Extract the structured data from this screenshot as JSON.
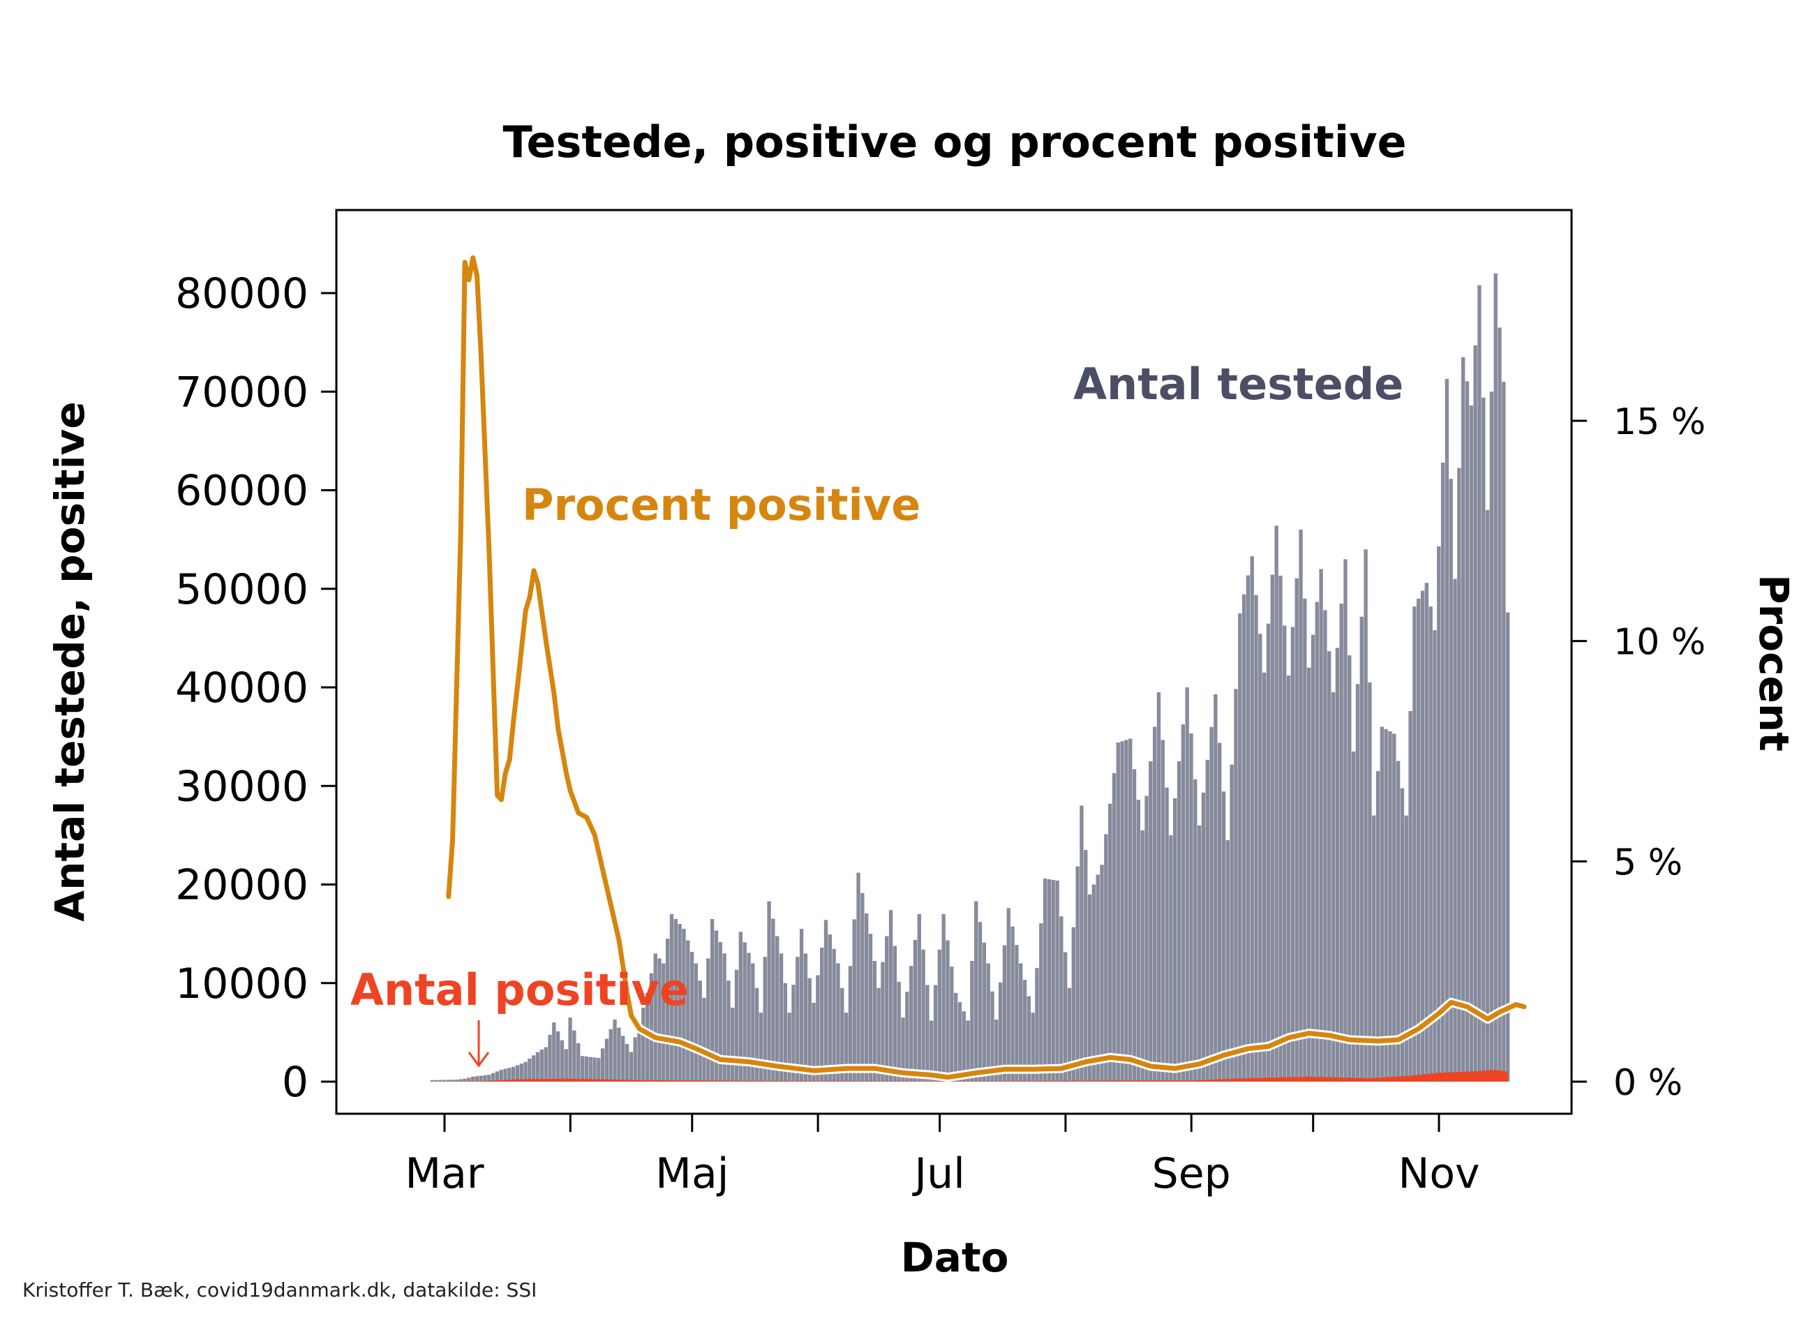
{
  "chart_data": {
    "type": "bar",
    "title": "Testede, positive og procent positive",
    "xlabel": "Dato",
    "ylabel": "Antal testede, positive",
    "ylabel_right": "Procent",
    "ylim": [
      0,
      87000
    ],
    "ylim_right": [
      0,
      20
    ],
    "x_start": "2020-02-27",
    "x_end": "2020-11-18",
    "x_ticks": [
      {
        "date": "2020-03-01",
        "label": "Mar"
      },
      {
        "date": "2020-04-01",
        "label": ""
      },
      {
        "date": "2020-05-01",
        "label": "Maj"
      },
      {
        "date": "2020-06-01",
        "label": ""
      },
      {
        "date": "2020-07-01",
        "label": "Jul"
      },
      {
        "date": "2020-08-01",
        "label": ""
      },
      {
        "date": "2020-09-01",
        "label": "Sep"
      },
      {
        "date": "2020-10-01",
        "label": ""
      },
      {
        "date": "2020-11-01",
        "label": "Nov"
      }
    ],
    "y_ticks": [
      0,
      10000,
      20000,
      30000,
      40000,
      50000,
      60000,
      70000,
      80000
    ],
    "y_tick_labels": [
      "0",
      "10000",
      "20000",
      "30000",
      "40000",
      "50000",
      "60000",
      "70000",
      "80000"
    ],
    "y_right_ticks": [
      0,
      5,
      10,
      15
    ],
    "y_right_tick_labels": [
      "0 %",
      "5 %",
      "10 %",
      "15 %"
    ],
    "series": [
      {
        "name": "Antal testede",
        "color": "#868b9c",
        "points": [
          [
            "2020-02-27",
            150
          ],
          [
            "2020-03-04",
            200
          ],
          [
            "2020-03-06",
            300
          ],
          [
            "2020-03-08",
            500
          ],
          [
            "2020-03-12",
            700
          ],
          [
            "2020-03-15",
            1200
          ],
          [
            "2020-03-18",
            1500
          ],
          [
            "2020-03-21",
            2000
          ],
          [
            "2020-03-24",
            3000
          ],
          [
            "2020-03-26",
            3500
          ],
          [
            "2020-03-28",
            6000
          ],
          [
            "2020-03-31",
            3300
          ],
          [
            "2020-04-01",
            6500
          ],
          [
            "2020-04-04",
            2600
          ],
          [
            "2020-04-08",
            2400
          ],
          [
            "2020-04-12",
            6300
          ],
          [
            "2020-04-16",
            3000
          ],
          [
            "2020-04-20",
            9000
          ],
          [
            "2020-04-22",
            13000
          ],
          [
            "2020-04-24",
            12000
          ],
          [
            "2020-04-26",
            17000
          ],
          [
            "2020-04-29",
            15500
          ],
          [
            "2020-05-02",
            12000
          ],
          [
            "2020-05-04",
            8500
          ],
          [
            "2020-05-06",
            16500
          ],
          [
            "2020-05-09",
            13000
          ],
          [
            "2020-05-11",
            7500
          ],
          [
            "2020-05-13",
            15200
          ],
          [
            "2020-05-16",
            12000
          ],
          [
            "2020-05-18",
            7000
          ],
          [
            "2020-05-20",
            18300
          ],
          [
            "2020-05-23",
            13000
          ],
          [
            "2020-05-25",
            7000
          ],
          [
            "2020-05-28",
            15500
          ],
          [
            "2020-05-31",
            8000
          ],
          [
            "2020-06-03",
            16400
          ],
          [
            "2020-06-06",
            12000
          ],
          [
            "2020-06-08",
            7000
          ],
          [
            "2020-06-11",
            21200
          ],
          [
            "2020-06-14",
            15000
          ],
          [
            "2020-06-16",
            9500
          ],
          [
            "2020-06-19",
            17400
          ],
          [
            "2020-06-22",
            6500
          ],
          [
            "2020-06-26",
            17000
          ],
          [
            "2020-06-29",
            6200
          ],
          [
            "2020-07-02",
            17000
          ],
          [
            "2020-07-05",
            9000
          ],
          [
            "2020-07-08",
            6200
          ],
          [
            "2020-07-10",
            18300
          ],
          [
            "2020-07-13",
            12000
          ],
          [
            "2020-07-15",
            6300
          ],
          [
            "2020-07-18",
            17600
          ],
          [
            "2020-07-21",
            12000
          ],
          [
            "2020-07-24",
            7000
          ],
          [
            "2020-07-27",
            20600
          ],
          [
            "2020-07-30",
            20400
          ],
          [
            "2020-08-02",
            9500
          ],
          [
            "2020-08-05",
            28000
          ],
          [
            "2020-08-07",
            19000
          ],
          [
            "2020-08-10",
            22000
          ],
          [
            "2020-08-14",
            34400
          ],
          [
            "2020-08-17",
            34800
          ],
          [
            "2020-08-20",
            25500
          ],
          [
            "2020-08-24",
            39500
          ],
          [
            "2020-08-27",
            25000
          ],
          [
            "2020-08-31",
            40000
          ],
          [
            "2020-09-03",
            26000
          ],
          [
            "2020-09-07",
            39300
          ],
          [
            "2020-09-10",
            24500
          ],
          [
            "2020-09-13",
            47500
          ],
          [
            "2020-09-16",
            53300
          ],
          [
            "2020-09-19",
            41500
          ],
          [
            "2020-09-22",
            56400
          ],
          [
            "2020-09-25",
            41200
          ],
          [
            "2020-09-28",
            56000
          ],
          [
            "2020-09-30",
            42000
          ],
          [
            "2020-10-03",
            52000
          ],
          [
            "2020-10-06",
            39500
          ],
          [
            "2020-10-09",
            53000
          ],
          [
            "2020-10-11",
            33500
          ],
          [
            "2020-10-14",
            54000
          ],
          [
            "2020-10-16",
            27000
          ],
          [
            "2020-10-18",
            36000
          ],
          [
            "2020-10-21",
            35300
          ],
          [
            "2020-10-24",
            27000
          ],
          [
            "2020-10-26",
            48200
          ],
          [
            "2020-10-29",
            50600
          ],
          [
            "2020-10-31",
            45800
          ],
          [
            "2020-11-03",
            71300
          ],
          [
            "2020-11-05",
            51000
          ],
          [
            "2020-11-07",
            73500
          ],
          [
            "2020-11-09",
            68600
          ],
          [
            "2020-11-11",
            80800
          ],
          [
            "2020-11-13",
            58000
          ],
          [
            "2020-11-15",
            82000
          ],
          [
            "2020-11-17",
            71000
          ],
          [
            "2020-11-18",
            47600
          ]
        ]
      },
      {
        "name": "Antal positive",
        "color": "#ee4424",
        "points": [
          [
            "2020-02-27",
            0
          ],
          [
            "2020-03-10",
            60
          ],
          [
            "2020-03-20",
            250
          ],
          [
            "2020-03-31",
            300
          ],
          [
            "2020-04-20",
            150
          ],
          [
            "2020-05-15",
            80
          ],
          [
            "2020-06-15",
            40
          ],
          [
            "2020-07-15",
            40
          ],
          [
            "2020-08-10",
            100
          ],
          [
            "2020-09-01",
            120
          ],
          [
            "2020-09-15",
            350
          ],
          [
            "2020-09-30",
            500
          ],
          [
            "2020-10-15",
            350
          ],
          [
            "2020-10-25",
            600
          ],
          [
            "2020-11-01",
            900
          ],
          [
            "2020-11-10",
            1050
          ],
          [
            "2020-11-15",
            1200
          ],
          [
            "2020-11-18",
            1000
          ]
        ]
      },
      {
        "name": "Procent positive",
        "color": "#d6860e",
        "points": [
          [
            "2020-03-02",
            4.2
          ],
          [
            "2020-03-03",
            5.5
          ],
          [
            "2020-03-05",
            12.5
          ],
          [
            "2020-03-06",
            18.6
          ],
          [
            "2020-03-07",
            18.2
          ],
          [
            "2020-03-08",
            18.7
          ],
          [
            "2020-03-09",
            18.3
          ],
          [
            "2020-03-10",
            16.5
          ],
          [
            "2020-03-12",
            12.0
          ],
          [
            "2020-03-14",
            6.5
          ],
          [
            "2020-03-15",
            6.4
          ],
          [
            "2020-03-16",
            7.0
          ],
          [
            "2020-03-17",
            7.3
          ],
          [
            "2020-03-18",
            8.2
          ],
          [
            "2020-03-19",
            9.0
          ],
          [
            "2020-03-21",
            10.7
          ],
          [
            "2020-03-22",
            11.0
          ],
          [
            "2020-03-23",
            11.6
          ],
          [
            "2020-03-24",
            11.3
          ],
          [
            "2020-03-26",
            10.0
          ],
          [
            "2020-03-28",
            8.8
          ],
          [
            "2020-03-29",
            8.0
          ],
          [
            "2020-03-31",
            7.0
          ],
          [
            "2020-04-01",
            6.6
          ],
          [
            "2020-04-03",
            6.1
          ],
          [
            "2020-04-05",
            6.0
          ],
          [
            "2020-04-07",
            5.6
          ],
          [
            "2020-04-09",
            4.8
          ],
          [
            "2020-04-11",
            4.0
          ],
          [
            "2020-04-13",
            3.2
          ],
          [
            "2020-04-15",
            2.0
          ],
          [
            "2020-04-16",
            1.5
          ],
          [
            "2020-04-18",
            1.2
          ],
          [
            "2020-04-22",
            1.0
          ],
          [
            "2020-04-28",
            0.9
          ],
          [
            "2020-05-02",
            0.75
          ],
          [
            "2020-05-08",
            0.5
          ],
          [
            "2020-05-15",
            0.45
          ],
          [
            "2020-05-22",
            0.35
          ],
          [
            "2020-05-31",
            0.25
          ],
          [
            "2020-06-08",
            0.3
          ],
          [
            "2020-06-15",
            0.3
          ],
          [
            "2020-06-22",
            0.2
          ],
          [
            "2020-06-29",
            0.15
          ],
          [
            "2020-07-03",
            0.1
          ],
          [
            "2020-07-10",
            0.2
          ],
          [
            "2020-07-17",
            0.28
          ],
          [
            "2020-07-24",
            0.28
          ],
          [
            "2020-07-31",
            0.3
          ],
          [
            "2020-08-06",
            0.45
          ],
          [
            "2020-08-12",
            0.55
          ],
          [
            "2020-08-17",
            0.5
          ],
          [
            "2020-08-22",
            0.35
          ],
          [
            "2020-08-28",
            0.3
          ],
          [
            "2020-09-03",
            0.4
          ],
          [
            "2020-09-09",
            0.6
          ],
          [
            "2020-09-15",
            0.75
          ],
          [
            "2020-09-20",
            0.8
          ],
          [
            "2020-09-25",
            1.0
          ],
          [
            "2020-09-30",
            1.1
          ],
          [
            "2020-10-05",
            1.05
          ],
          [
            "2020-10-10",
            0.95
          ],
          [
            "2020-10-17",
            0.92
          ],
          [
            "2020-10-22",
            0.95
          ],
          [
            "2020-10-27",
            1.2
          ],
          [
            "2020-11-01",
            1.55
          ],
          [
            "2020-11-04",
            1.8
          ],
          [
            "2020-11-08",
            1.7
          ],
          [
            "2020-11-13",
            1.42
          ],
          [
            "2020-11-16",
            1.58
          ],
          [
            "2020-11-20",
            1.75
          ],
          [
            "2020-11-22",
            1.7
          ]
        ]
      }
    ],
    "annotations": [
      {
        "text": "Antal testede",
        "series": "Antal testede"
      },
      {
        "text": "Procent positive",
        "series": "Procent positive"
      },
      {
        "text": "Antal positive",
        "series": "Antal positive"
      }
    ],
    "caption": "Kristoffer T. Bæk, covid19danmark.dk, datakilde: SSI",
    "grid": false,
    "legend": "none"
  }
}
